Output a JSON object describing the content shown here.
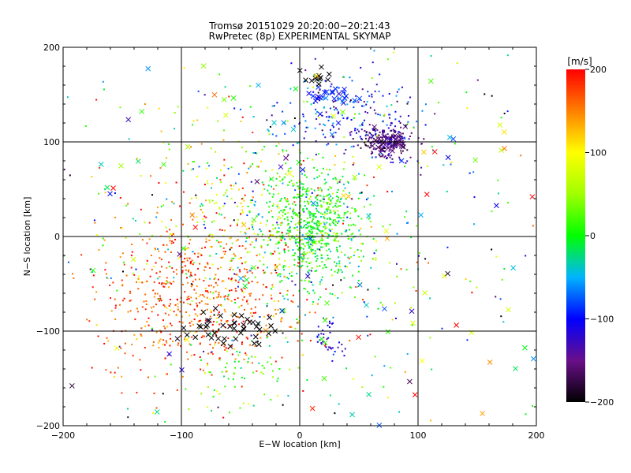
{
  "chart_data": {
    "type": "scatter",
    "title": "Tromsø 20151029 20:20:00−20:21:43",
    "subtitle": "RwPretec (8p) EXPERIMENTAL SKYMAP",
    "xlabel": "E−W location [km]",
    "ylabel": "N−S location [km]",
    "xlim": [
      -200,
      200
    ],
    "ylim": [
      -200,
      200
    ],
    "xticks": [
      -200,
      -100,
      0,
      100,
      200
    ],
    "yticks": [
      -200,
      -100,
      0,
      100,
      200
    ],
    "xtick_labels": [
      "−200",
      "−100",
      "0",
      "100",
      "200"
    ],
    "ytick_labels": [
      "−200",
      "−100",
      "0",
      "100",
      "200"
    ],
    "grid": true,
    "colorbar": {
      "unit_label": "[m/s]",
      "range": [
        -200,
        200
      ],
      "ticks": [
        200,
        100,
        0,
        -100,
        -200
      ],
      "tick_labels": [
        "200",
        "100",
        "0",
        "−100",
        "−200"
      ]
    },
    "series": [
      {
        "marker": "dot",
        "cluster": "central-green",
        "x_center": 10,
        "y_center": 10,
        "x_spread": 20,
        "y_spread": 30,
        "velocity": 5,
        "velocity_spread": 30,
        "count": 700
      },
      {
        "marker": "dot",
        "cluster": "southwest-red",
        "x_center": -90,
        "y_center": -70,
        "x_spread": 40,
        "y_spread": 40,
        "velocity": 170,
        "velocity_spread": 25,
        "count": 550
      },
      {
        "marker": "dot",
        "cluster": "west-mixed",
        "x_center": -60,
        "y_center": 20,
        "x_spread": 45,
        "y_spread": 45,
        "velocity": 80,
        "velocity_spread": 80,
        "count": 320
      },
      {
        "marker": "dot",
        "cluster": "northeast-purple",
        "x_center": 72,
        "y_center": 100,
        "x_spread": 12,
        "y_spread": 9,
        "velocity": -150,
        "velocity_spread": 25,
        "count": 200
      },
      {
        "marker": "dot",
        "cluster": "north-blue",
        "x_center": 40,
        "y_center": 130,
        "x_spread": 30,
        "y_spread": 20,
        "velocity": -90,
        "velocity_spread": 35,
        "count": 180
      },
      {
        "marker": "dot",
        "cluster": "southeast-blue",
        "x_center": 25,
        "y_center": -110,
        "x_spread": 6,
        "y_spread": 10,
        "velocity": -110,
        "velocity_spread": 20,
        "count": 40
      },
      {
        "marker": "dot",
        "cluster": "south-cyan",
        "x_center": -50,
        "y_center": -140,
        "x_spread": 20,
        "y_spread": 25,
        "velocity": 20,
        "velocity_spread": 40,
        "count": 70
      },
      {
        "marker": "dot",
        "cluster": "scattered",
        "x_center": 0,
        "y_center": 0,
        "x_spread": 110,
        "y_spread": 110,
        "velocity": 0,
        "velocity_spread": 110,
        "count": 450
      },
      {
        "marker": "cross",
        "cluster": "southwest-black",
        "x_center": -62,
        "y_center": -95,
        "x_spread": 22,
        "y_spread": 12,
        "velocity": -200,
        "velocity_spread": 5,
        "count": 45
      },
      {
        "marker": "cross",
        "cluster": "northeast-purple",
        "x_center": 75,
        "y_center": 98,
        "x_spread": 6,
        "y_spread": 5,
        "velocity": -160,
        "velocity_spread": 15,
        "count": 35
      },
      {
        "marker": "cross",
        "cluster": "north-blue",
        "x_center": 28,
        "y_center": 148,
        "x_spread": 8,
        "y_spread": 5,
        "velocity": -90,
        "velocity_spread": 20,
        "count": 25
      },
      {
        "marker": "cross",
        "cluster": "north-black",
        "x_center": 15,
        "y_center": 165,
        "x_spread": 10,
        "y_spread": 8,
        "velocity": -200,
        "velocity_spread": 5,
        "count": 12
      },
      {
        "marker": "cross",
        "cluster": "scattered",
        "x_center": 0,
        "y_center": 0,
        "x_spread": 140,
        "y_spread": 140,
        "velocity": 0,
        "velocity_spread": 120,
        "count": 160
      }
    ]
  }
}
